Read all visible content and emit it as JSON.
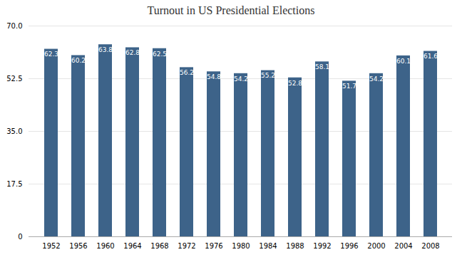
{
  "chart_data": {
    "type": "bar",
    "title": "Turnout in US Presidential Elections",
    "categories": [
      "1952",
      "1956",
      "1960",
      "1964",
      "1968",
      "1972",
      "1976",
      "1980",
      "1984",
      "1988",
      "1992",
      "1996",
      "2000",
      "2004",
      "2008"
    ],
    "values": [
      62.3,
      60.2,
      63.8,
      62.8,
      62.5,
      56.2,
      54.8,
      54.2,
      55.2,
      52.8,
      58.1,
      51.7,
      54.2,
      60.1,
      61.6
    ],
    "color": "#3d6389",
    "ylim": [
      0,
      70.0
    ],
    "yticks": [
      0,
      17.5,
      {
        "value": 35,
        "label": "35.0"
      },
      52.5,
      {
        "value": 70,
        "label": "70.0"
      }
    ],
    "grid": true,
    "data_labels": true
  }
}
